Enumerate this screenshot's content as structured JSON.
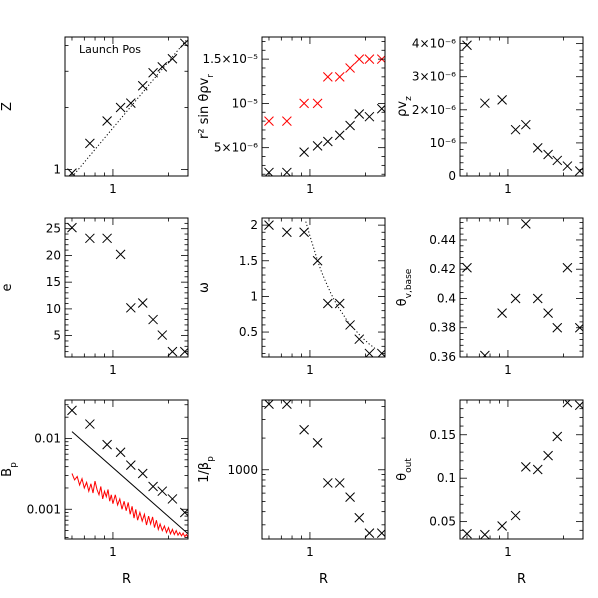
{
  "chart_data": [
    {
      "id": "Z",
      "type": "scatter",
      "xlabel": "",
      "ylabel": "Z",
      "xscale": "log",
      "yscale": "log",
      "xlim": [
        0.55,
        2.55
      ],
      "ylim": [
        0.93,
        4.4
      ],
      "xticks": [
        {
          "v": 1,
          "label": "1"
        }
      ],
      "yticks": [
        {
          "v": 1,
          "label": "1"
        }
      ],
      "x": [
        0.6,
        0.75,
        0.93,
        1.1,
        1.25,
        1.45,
        1.65,
        1.85,
        2.1,
        2.45
      ],
      "series": [
        {
          "values": [
            0.96,
            1.34,
            1.72,
            2.0,
            2.1,
            2.55,
            2.95,
            3.15,
            3.45,
            4.1
          ],
          "marker": "x",
          "color": "#000000"
        }
      ],
      "lines": [
        {
          "x": [
            0.6,
            2.5
          ],
          "y": [
            0.92,
            4.25
          ],
          "style": "dotted",
          "color": "#000000"
        }
      ],
      "annotation": "Launch Pos"
    },
    {
      "id": "rvr",
      "type": "scatter",
      "xlabel": "",
      "ylabel": "r² sin θρv_r",
      "xscale": "log",
      "yscale": "linear",
      "xlim": [
        0.55,
        2.55
      ],
      "ylim": [
        1.8e-06,
        1.75e-05
      ],
      "xticks": [
        {
          "v": 1,
          "label": "1"
        }
      ],
      "yticks": [
        {
          "v": 5e-06,
          "label": "5×10⁻⁶"
        },
        {
          "v": 1e-05,
          "label": "10⁻⁵"
        },
        {
          "v": 1.5e-05,
          "label": "1.5×10⁻⁵"
        }
      ],
      "x": [
        0.6,
        0.75,
        0.93,
        1.1,
        1.25,
        1.45,
        1.65,
        1.85,
        2.1,
        2.45
      ],
      "series": [
        {
          "values": [
            2.2e-06,
            2.2e-06,
            4.5e-06,
            5.2e-06,
            5.7e-06,
            6.4e-06,
            7.5e-06,
            8.8e-06,
            8.5e-06,
            9.4e-06
          ],
          "marker": "x",
          "color": "#000000"
        },
        {
          "values": [
            8e-06,
            8e-06,
            1e-05,
            1e-05,
            1.3e-05,
            1.3e-05,
            1.4e-05,
            1.5e-05,
            1.5e-05,
            1.5e-05
          ],
          "marker": "x",
          "color": "#ff0000"
        }
      ]
    },
    {
      "id": "rhovz",
      "type": "scatter",
      "xlabel": "",
      "ylabel": "ρv_z",
      "xscale": "log",
      "yscale": "linear",
      "xlim": [
        0.55,
        2.55
      ],
      "ylim": [
        0,
        4.2e-06
      ],
      "xticks": [
        {
          "v": 1,
          "label": "1"
        }
      ],
      "yticks": [
        {
          "v": 0,
          "label": "0"
        },
        {
          "v": 1e-06,
          "label": "10⁻⁶"
        },
        {
          "v": 2e-06,
          "label": "2×10⁻⁶"
        },
        {
          "v": 3e-06,
          "label": "3×10⁻⁶"
        },
        {
          "v": 4e-06,
          "label": "4×10⁻⁶"
        }
      ],
      "x": [
        0.6,
        0.75,
        0.93,
        1.1,
        1.25,
        1.45,
        1.65,
        1.85,
        2.1,
        2.45
      ],
      "series": [
        {
          "values": [
            3.95e-06,
            2.2e-06,
            2.3e-06,
            1.4e-06,
            1.55e-06,
            8.5e-07,
            6.5e-07,
            4.7e-07,
            3e-07,
            1.5e-07
          ],
          "marker": "x",
          "color": "#000000"
        }
      ]
    },
    {
      "id": "e",
      "type": "scatter",
      "xlabel": "",
      "ylabel": "e",
      "xscale": "log",
      "yscale": "linear",
      "xlim": [
        0.55,
        2.55
      ],
      "ylim": [
        1,
        27
      ],
      "xticks": [
        {
          "v": 1,
          "label": "1"
        }
      ],
      "yticks": [
        {
          "v": 5,
          "label": "5"
        },
        {
          "v": 10,
          "label": "10"
        },
        {
          "v": 15,
          "label": "15"
        },
        {
          "v": 20,
          "label": "20"
        },
        {
          "v": 25,
          "label": "25"
        }
      ],
      "x": [
        0.6,
        0.75,
        0.93,
        1.1,
        1.25,
        1.45,
        1.65,
        1.85,
        2.1,
        2.45
      ],
      "series": [
        {
          "values": [
            25.2,
            23.2,
            23.2,
            20.2,
            10.2,
            11.1,
            8.0,
            5.1,
            2.0,
            2.0
          ],
          "marker": "x",
          "color": "#000000"
        }
      ]
    },
    {
      "id": "omega",
      "type": "scatter",
      "xlabel": "",
      "ylabel": "ω",
      "xscale": "log",
      "yscale": "linear",
      "xlim": [
        0.55,
        2.55
      ],
      "ylim": [
        0.15,
        2.1
      ],
      "xticks": [
        {
          "v": 1,
          "label": "1"
        }
      ],
      "yticks": [
        {
          "v": 0.5,
          "label": "0.5"
        },
        {
          "v": 1,
          "label": "1"
        },
        {
          "v": 1.5,
          "label": "1.5"
        },
        {
          "v": 2,
          "label": "2"
        }
      ],
      "x": [
        0.6,
        0.75,
        0.93,
        1.1,
        1.25,
        1.45,
        1.65,
        1.85,
        2.1,
        2.45
      ],
      "series": [
        {
          "values": [
            2.0,
            1.9,
            1.9,
            1.5,
            0.9,
            0.9,
            0.6,
            0.4,
            0.2,
            0.2
          ],
          "marker": "x",
          "color": "#000000"
        }
      ],
      "lines": [
        {
          "x": [
            0.95,
            1.0,
            1.05,
            1.1,
            1.15,
            1.2,
            1.3,
            1.4,
            1.5,
            1.6,
            1.7,
            1.8,
            1.9,
            2.0,
            2.1,
            2.2,
            2.3
          ],
          "y": [
            2.05,
            1.85,
            1.67,
            1.5,
            1.36,
            1.24,
            1.04,
            0.88,
            0.76,
            0.65,
            0.57,
            0.5,
            0.43,
            0.38,
            0.33,
            0.29,
            0.25
          ],
          "style": "dotted",
          "color": "#000000"
        }
      ]
    },
    {
      "id": "theta_base",
      "type": "scatter",
      "xlabel": "",
      "ylabel": "θ_v,base",
      "xscale": "log",
      "yscale": "linear",
      "xlim": [
        0.55,
        2.55
      ],
      "ylim": [
        0.36,
        0.455
      ],
      "xticks": [
        {
          "v": 1,
          "label": "1"
        }
      ],
      "yticks": [
        {
          "v": 0.36,
          "label": "0.36"
        },
        {
          "v": 0.38,
          "label": "0.38"
        },
        {
          "v": 0.4,
          "label": "0.4"
        },
        {
          "v": 0.42,
          "label": "0.42"
        },
        {
          "v": 0.44,
          "label": "0.44"
        }
      ],
      "x": [
        0.6,
        0.75,
        0.93,
        1.1,
        1.25,
        1.45,
        1.65,
        1.85,
        2.1,
        2.45
      ],
      "series": [
        {
          "values": [
            0.421,
            0.361,
            0.39,
            0.4,
            0.451,
            0.4,
            0.39,
            0.38,
            0.421,
            0.38
          ],
          "marker": "x",
          "color": "#000000"
        }
      ]
    },
    {
      "id": "Bp",
      "type": "scatter",
      "xlabel": "R",
      "ylabel": "B_p",
      "xscale": "log",
      "yscale": "log",
      "xlim": [
        0.55,
        2.55
      ],
      "ylim": [
        0.00038,
        0.035
      ],
      "xticks": [
        {
          "v": 1,
          "label": "1"
        }
      ],
      "yticks": [
        {
          "v": 0.001,
          "label": "0.001"
        },
        {
          "v": 0.01,
          "label": "0.01"
        }
      ],
      "x": [
        0.6,
        0.75,
        0.93,
        1.1,
        1.25,
        1.45,
        1.65,
        1.85,
        2.1,
        2.45
      ],
      "series": [
        {
          "values": [
            0.025,
            0.016,
            0.0082,
            0.0064,
            0.0042,
            0.0032,
            0.0021,
            0.0018,
            0.0014,
            0.0009
          ],
          "marker": "x",
          "color": "#000000"
        }
      ],
      "lines": [
        {
          "x": [
            0.6,
            2.55
          ],
          "y": [
            0.0125,
            0.00045
          ],
          "style": "solid",
          "color": "#000000"
        },
        {
          "x": [
            0.6,
            0.62,
            0.64,
            0.66,
            0.68,
            0.7,
            0.72,
            0.74,
            0.76,
            0.78,
            0.8,
            0.82,
            0.84,
            0.86,
            0.88,
            0.9,
            0.92,
            0.94,
            0.96,
            0.98,
            1.0,
            1.03,
            1.06,
            1.09,
            1.12,
            1.15,
            1.18,
            1.21,
            1.24,
            1.27,
            1.3,
            1.33,
            1.36,
            1.4,
            1.44,
            1.48,
            1.52,
            1.56,
            1.6,
            1.64,
            1.68,
            1.72,
            1.76,
            1.8,
            1.85,
            1.9,
            1.95,
            2.0,
            2.05,
            2.1,
            2.15,
            2.2,
            2.25,
            2.3,
            2.35,
            2.4,
            2.45,
            2.5,
            2.55
          ],
          "y": [
            0.0032,
            0.0026,
            0.0029,
            0.0022,
            0.0027,
            0.002,
            0.0024,
            0.0018,
            0.0023,
            0.0017,
            0.0025,
            0.0019,
            0.0016,
            0.0021,
            0.0014,
            0.0018,
            0.0015,
            0.0019,
            0.0013,
            0.0016,
            0.0012,
            0.0016,
            0.00115,
            0.0014,
            0.001,
            0.0013,
            0.00095,
            0.00125,
            0.00085,
            0.0011,
            0.00075,
            0.001,
            0.0007,
            0.0009,
            0.00068,
            0.00085,
            0.0006,
            0.0008,
            0.00062,
            0.00078,
            0.00055,
            0.0007,
            0.00052,
            0.00062,
            0.0005,
            0.00058,
            0.00047,
            0.00055,
            0.00045,
            0.00052,
            0.00044,
            0.0005,
            0.00043,
            0.00047,
            0.00042,
            0.00046,
            0.00041,
            0.00044,
            0.0004
          ],
          "style": "solid",
          "color": "#ff0000"
        }
      ]
    },
    {
      "id": "beta",
      "type": "scatter",
      "xlabel": "R",
      "ylabel": "1/β_p",
      "xscale": "log",
      "yscale": "log",
      "xlim": [
        0.55,
        2.55
      ],
      "ylim": [
        220,
        4600
      ],
      "xticks": [
        {
          "v": 1,
          "label": "1"
        }
      ],
      "yticks": [
        {
          "v": 1000,
          "label": "1000"
        }
      ],
      "x": [
        0.6,
        0.75,
        0.93,
        1.1,
        1.25,
        1.45,
        1.65,
        1.85,
        2.1,
        2.45
      ],
      "series": [
        {
          "values": [
            4200,
            4200,
            2400,
            1800,
            750,
            750,
            550,
            350,
            250,
            250
          ],
          "marker": "x",
          "color": "#000000"
        }
      ]
    },
    {
      "id": "theta_out",
      "type": "scatter",
      "xlabel": "R",
      "ylabel": "θ_out",
      "xscale": "log",
      "yscale": "linear",
      "xlim": [
        0.55,
        2.55
      ],
      "ylim": [
        0.03,
        0.19
      ],
      "xticks": [
        {
          "v": 1,
          "label": "1"
        }
      ],
      "yticks": [
        {
          "v": 0.05,
          "label": "0.05"
        },
        {
          "v": 0.1,
          "label": "0.1"
        },
        {
          "v": 0.15,
          "label": "0.15"
        }
      ],
      "x": [
        0.6,
        0.75,
        0.93,
        1.1,
        1.25,
        1.45,
        1.65,
        1.85,
        2.1,
        2.45
      ],
      "series": [
        {
          "values": [
            0.036,
            0.035,
            0.045,
            0.057,
            0.113,
            0.11,
            0.126,
            0.148,
            0.187,
            0.184
          ],
          "marker": "x",
          "color": "#000000"
        }
      ]
    }
  ]
}
